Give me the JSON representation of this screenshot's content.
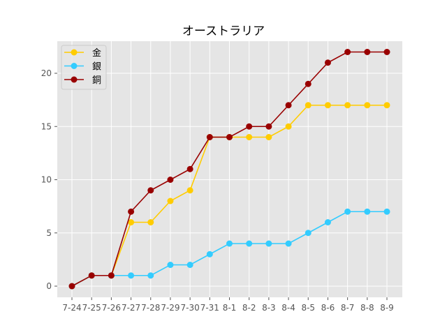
{
  "chart_data": {
    "type": "line",
    "title": "オーストラリア",
    "xlabel": "",
    "ylabel": "",
    "categories": [
      "7-24",
      "7-25",
      "7-26",
      "7-27",
      "7-28",
      "7-29",
      "7-30",
      "7-31",
      "8-1",
      "8-2",
      "8-3",
      "8-4",
      "8-5",
      "8-6",
      "8-7",
      "8-8",
      "8-9"
    ],
    "series": [
      {
        "name": "金",
        "color": "#ffcc00",
        "values": [
          0,
          1,
          1,
          6,
          6,
          8,
          9,
          14,
          14,
          14,
          14,
          15,
          17,
          17,
          17,
          17,
          17
        ]
      },
      {
        "name": "銀",
        "color": "#33ccff",
        "values": [
          0,
          1,
          1,
          1,
          1,
          2,
          2,
          3,
          4,
          4,
          4,
          4,
          5,
          6,
          7,
          7,
          7
        ]
      },
      {
        "name": "銅",
        "color": "#990000",
        "values": [
          0,
          1,
          1,
          7,
          9,
          10,
          11,
          14,
          14,
          15,
          15,
          17,
          19,
          21,
          22,
          22,
          22
        ]
      }
    ],
    "yticks": [
      0,
      5,
      10,
      15,
      20
    ],
    "ylim": [
      -1.1,
      23.1
    ],
    "grid": true,
    "legend_position": "upper left",
    "background": "#e5e5e5"
  }
}
